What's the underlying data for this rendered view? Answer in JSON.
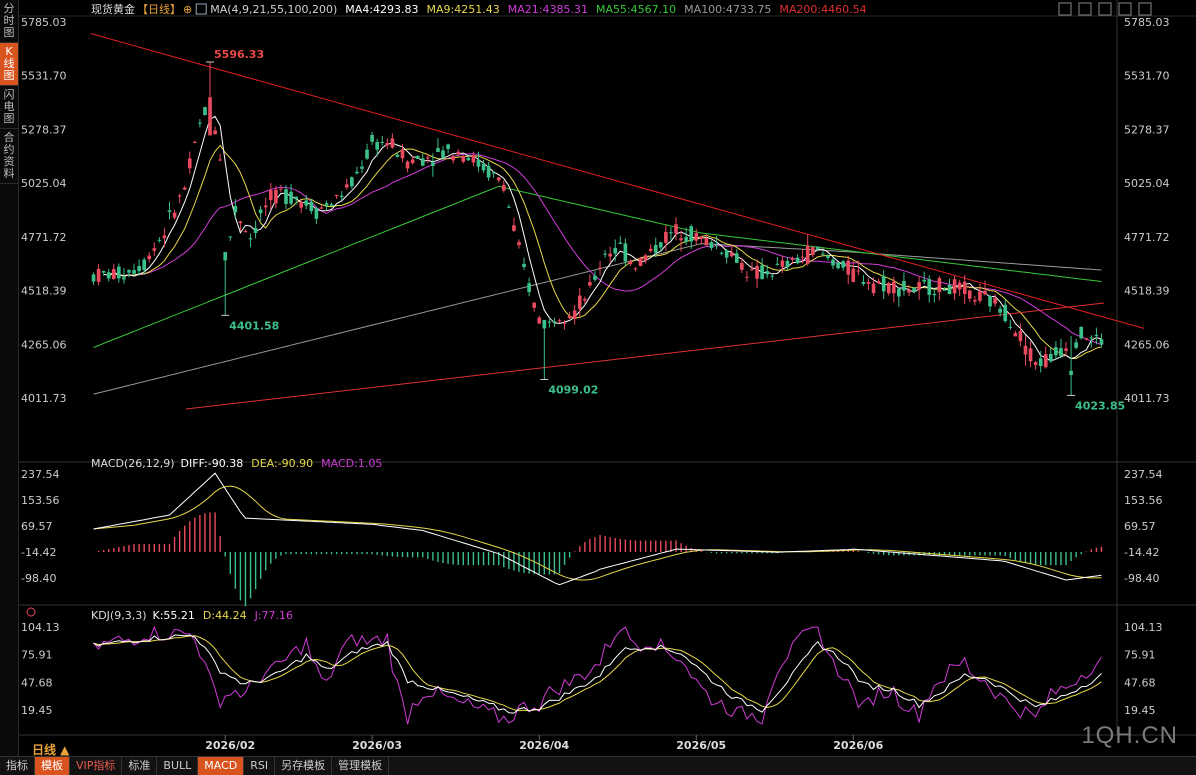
{
  "sidebar": {
    "tabs": [
      {
        "label": "分时图",
        "active": false
      },
      {
        "label": "K线图",
        "active": true
      },
      {
        "label": "闪电图",
        "active": false
      },
      {
        "label": "合约资料",
        "active": false
      }
    ]
  },
  "header": {
    "symbol": "现货黄金",
    "period_tag": "【日线】",
    "plus": "⊕",
    "ma": [
      {
        "label": "MA(4,9,21,55,100,200)",
        "color": "#d0d0d0"
      },
      {
        "label": "MA4:4293.83",
        "color": "#ffffff"
      },
      {
        "label": "MA9:4251.43",
        "color": "#e8d84a"
      },
      {
        "label": "MA21:4385.31",
        "color": "#d03cd8"
      },
      {
        "label": "MA55:4567.10",
        "color": "#38c838"
      },
      {
        "label": "MA100:4733.75",
        "color": "#9a9a9a"
      },
      {
        "label": "MA200:4460.54",
        "color": "#e03030"
      }
    ]
  },
  "window_icons": [
    "crosshair-icon",
    "maximize-icon",
    "minimize-icon",
    "restore-icon",
    "close-icon"
  ],
  "main_axis": {
    "ticks": [
      "5785.03",
      "5531.70",
      "5278.37",
      "5025.04",
      "4771.72",
      "4518.39",
      "4265.06",
      "4011.73"
    ],
    "ymin": 4011.73,
    "ymax": 5785.03
  },
  "annotations": [
    {
      "text": "5596.33",
      "price": 5596.33,
      "bar": 23,
      "color": "#e84a4a"
    },
    {
      "text": "4401.58",
      "price": 4401.58,
      "bar": 26,
      "color": "#3cc08a"
    },
    {
      "text": "4099.02",
      "price": 4099.02,
      "bar": 89,
      "color": "#3cc08a"
    },
    {
      "text": "4023.85",
      "price": 4023.85,
      "bar": 193,
      "color": "#3cc08a"
    }
  ],
  "macd": {
    "label": "MACD(26,12,9)",
    "values": [
      {
        "label": "DIFF:-90.38",
        "color": "#ffffff"
      },
      {
        "label": "DEA:-90.90",
        "color": "#e8d84a"
      },
      {
        "label": "MACD:1.05",
        "color": "#d03cd8"
      }
    ],
    "ticks": [
      "237.54",
      "153.56",
      "69.57",
      "-14.42",
      "-98.40"
    ],
    "ymin": -98.4,
    "ymax": 237.54
  },
  "kdj": {
    "label": "KDJ(9,3,3)",
    "values": [
      {
        "label": "K:55.21",
        "color": "#ffffff"
      },
      {
        "label": "D:44.24",
        "color": "#e8d84a"
      },
      {
        "label": "J:77.16",
        "color": "#d03cd8"
      }
    ],
    "ticks": [
      "104.13",
      "75.91",
      "47.68",
      "19.45"
    ],
    "ymin": 19.45,
    "ymax": 104.13
  },
  "x_axis": {
    "labels": [
      {
        "text": "2026/02",
        "bar": 26
      },
      {
        "text": "2026/03",
        "bar": 55
      },
      {
        "text": "2026/04",
        "bar": 88
      },
      {
        "text": "2026/05",
        "bar": 119
      },
      {
        "text": "2026/06",
        "bar": 150
      }
    ]
  },
  "period_label": "日线 ▲",
  "bottom_tabs": [
    {
      "label": "指标",
      "active": false,
      "vip": false
    },
    {
      "label": "模板",
      "active": true,
      "vip": false
    },
    {
      "label": "VIP指标",
      "active": false,
      "vip": true
    },
    {
      "label": "标准",
      "active": false,
      "vip": false
    },
    {
      "label": "BULL",
      "active": false,
      "vip": false
    },
    {
      "label": "MACD",
      "active": true,
      "vip": false
    },
    {
      "label": "RSI",
      "active": false,
      "vip": false
    },
    {
      "label": "另存模板",
      "active": false,
      "vip": false
    },
    {
      "label": "管理模板",
      "active": false,
      "vip": false
    }
  ],
  "watermark": "1QH.CN",
  "colors": {
    "up": "#e84a5f",
    "down": "#3cc08a",
    "ma4": "#ffffff",
    "ma9": "#e8d84a",
    "ma21": "#d03cd8",
    "ma55": "#38c838",
    "ma100": "#9a9a9a",
    "ma200": "#e03030",
    "trend": "#e02020"
  }
}
